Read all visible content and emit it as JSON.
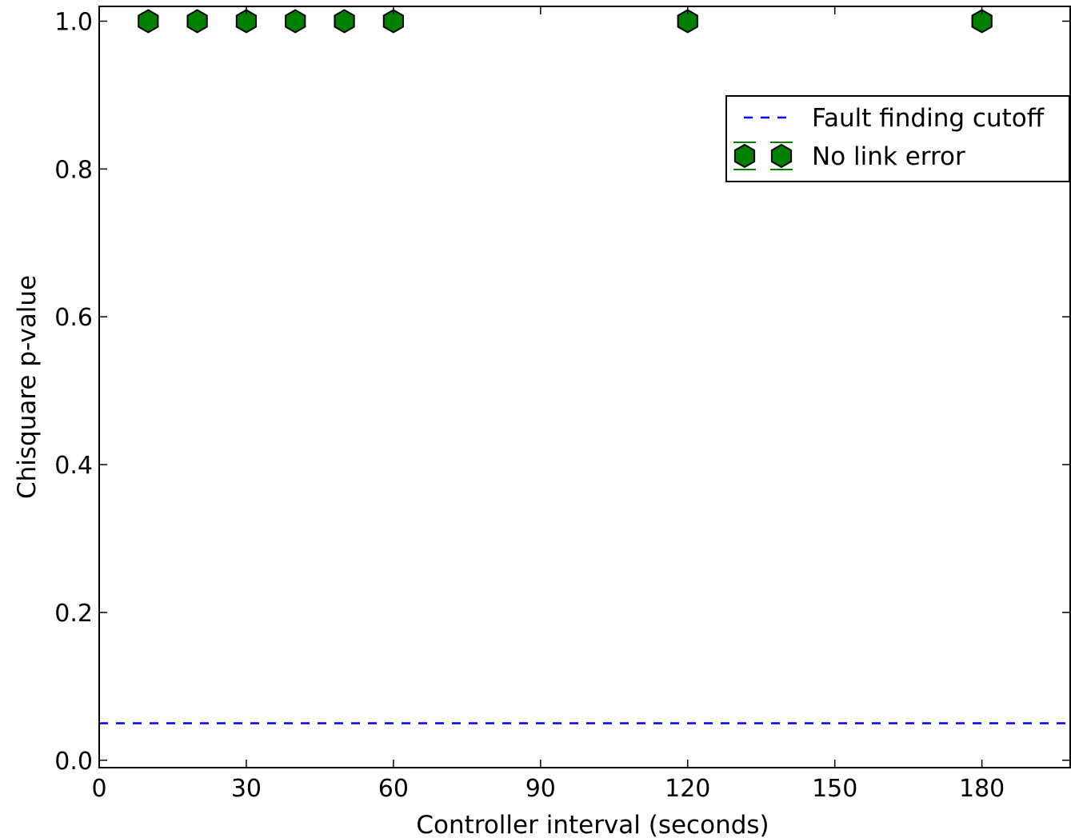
{
  "chart_data": {
    "type": "scatter",
    "title": "",
    "xlabel": "Controller interval (seconds)",
    "ylabel": "Chisquare p-value",
    "xlim": [
      0,
      198
    ],
    "ylim": [
      -0.01,
      1.02
    ],
    "xticks": [
      0,
      30,
      60,
      90,
      120,
      150,
      180
    ],
    "xtick_labels": [
      "0",
      "30",
      "60",
      "90",
      "120",
      "150",
      "180"
    ],
    "yticks": [
      0.0,
      0.2,
      0.4,
      0.6,
      0.8,
      1.0
    ],
    "ytick_labels": [
      "0.0",
      "0.2",
      "0.4",
      "0.6",
      "0.8",
      "1.0"
    ],
    "grid": false,
    "legend_position": "upper-right",
    "series": [
      {
        "name": "No link error",
        "marker": "hexagon",
        "color": "#008000",
        "edge_color": "#000000",
        "error_bar_color": "#008000",
        "x": [
          10,
          20,
          30,
          40,
          50,
          60,
          120,
          180
        ],
        "y": [
          1.0,
          1.0,
          1.0,
          1.0,
          1.0,
          1.0,
          1.0,
          1.0
        ]
      }
    ],
    "reference_lines": [
      {
        "name": "Fault finding cutoff",
        "orientation": "horizontal",
        "y": 0.05,
        "style": "dashed",
        "color": "#0000ff"
      }
    ],
    "legend": [
      "Fault finding cutoff",
      "No link error"
    ]
  }
}
